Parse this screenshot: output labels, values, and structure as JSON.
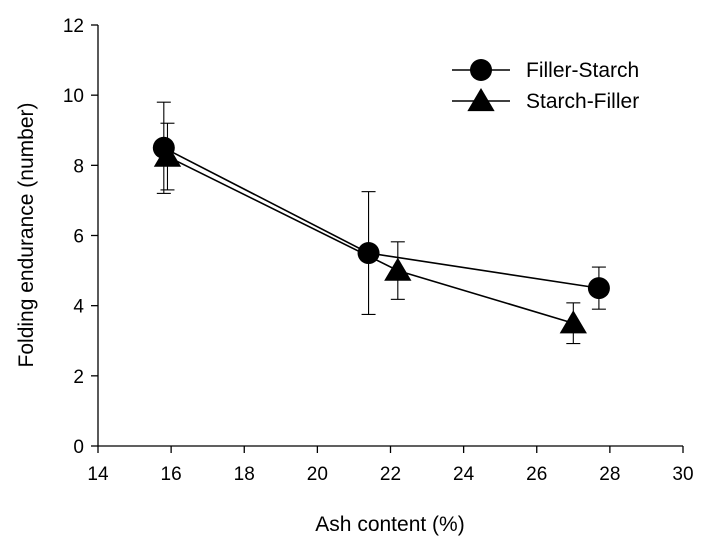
{
  "chart_data": {
    "type": "scatter",
    "title": "",
    "xlabel": "Ash content (%)",
    "ylabel": "Folding endurance (number)",
    "xlim": [
      14,
      30
    ],
    "ylim": [
      0,
      12
    ],
    "x_ticks": [
      "14",
      "16",
      "18",
      "20",
      "22",
      "24",
      "26",
      "28",
      "30"
    ],
    "y_ticks": [
      "0",
      "2",
      "4",
      "6",
      "8",
      "10",
      "12"
    ],
    "grid": false,
    "legend_position": "top-right",
    "series": [
      {
        "name": "Filler-Starch",
        "marker": "circle",
        "color": "#000000",
        "x": [
          15.8,
          21.4,
          27.7
        ],
        "y": [
          8.5,
          5.5,
          4.5
        ],
        "error": [
          1.3,
          1.75,
          0.6
        ]
      },
      {
        "name": "Starch-Filler",
        "marker": "triangle",
        "color": "#000000",
        "x": [
          15.9,
          22.2,
          27.0
        ],
        "y": [
          8.25,
          5.0,
          3.5
        ],
        "error": [
          0.95,
          0.82,
          0.58
        ]
      }
    ]
  }
}
